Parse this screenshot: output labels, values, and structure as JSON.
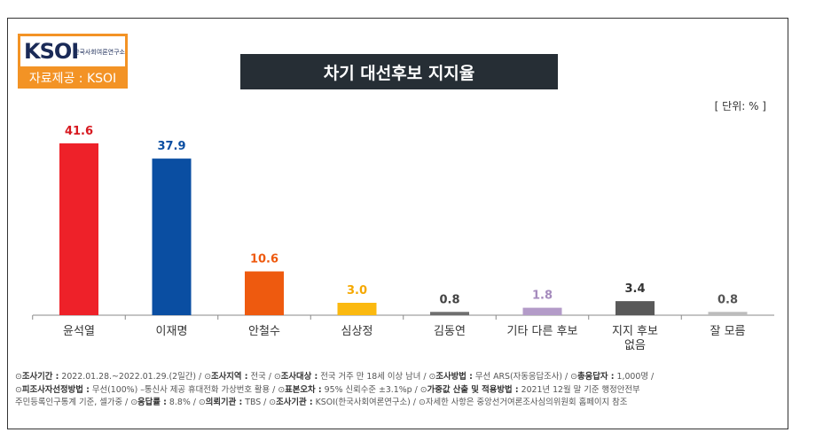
{
  "header": {
    "logo_text": "KSOI",
    "logo_subtitle": "한국사회여론연구소",
    "source_label": "자료제공 : KSOI",
    "title": "차기 대선후보 지지율",
    "unit": "[ 단위: % ]"
  },
  "colors": {
    "logo_orange": "#f39325",
    "title_bg": "#262e35"
  },
  "chart_data": {
    "type": "bar",
    "title": "차기 대선후보 지지율",
    "unit": "%",
    "ylim": [
      0,
      45
    ],
    "categories": [
      "윤석열",
      "이재명",
      "안철수",
      "심상정",
      "김동연",
      "기타 다른 후보",
      "지지 후보\n없음",
      "잘 모름"
    ],
    "values": [
      41.6,
      37.9,
      10.6,
      3.0,
      0.8,
      1.8,
      3.4,
      0.8
    ],
    "value_labels": [
      "41.6",
      "37.9",
      "10.6",
      "3.0",
      "0.8",
      "1.8",
      "3.4",
      "0.8"
    ],
    "bar_colors": [
      "#ee2129",
      "#0a4ea2",
      "#ee5a0f",
      "#fbb910",
      "#6f6f6f",
      "#b39bc8",
      "#595959",
      "#bcbcbc"
    ],
    "label_colors": [
      "#d71920",
      "#0a4ea2",
      "#ee5a0f",
      "#f5a800",
      "#444444",
      "#a58bbd",
      "#333333",
      "#555555"
    ]
  },
  "footnote": {
    "line1": [
      {
        "k": "조사기간 :",
        "v": " 2022.01.28.~2022.01.29.(2일간) / "
      },
      {
        "k": "조사지역 :",
        "v": " 전국 / "
      },
      {
        "k": "조사대상 :",
        "v": " 전국 거주 만 18세 이상 남녀 / "
      },
      {
        "k": "조사방법 :",
        "v": " 무선 ARS(자동응답조사) / "
      },
      {
        "k": "총응답자 :",
        "v": " 1,000명 /"
      }
    ],
    "line2": [
      {
        "k": "피조사자선정방법 :",
        "v": " 무선(100%) –통신사 제공 휴대전화 가상번호 활용 / "
      },
      {
        "k": "표본오차 :",
        "v": " 95% 신뢰수준 ±3.1%p / "
      },
      {
        "k": "가중값 산출 및 적용방법 :",
        "v": " 2021년 12월 말 기준 행정안전부"
      }
    ],
    "line3": [
      {
        "k": "",
        "v": "주민등록인구통계 기준, 셀가중 / "
      },
      {
        "k": "응답률 :",
        "v": " 8.8% / "
      },
      {
        "k": "의뢰기관 :",
        "v": " TBS / "
      },
      {
        "k": "조사기관 :",
        "v": " KSOI(한국사회여론연구소) / "
      },
      {
        "k": "",
        "v": "자세한 사항은 중앙선거여론조사심의위원회 홈페이지 참조"
      }
    ],
    "bullet": "⊙"
  }
}
